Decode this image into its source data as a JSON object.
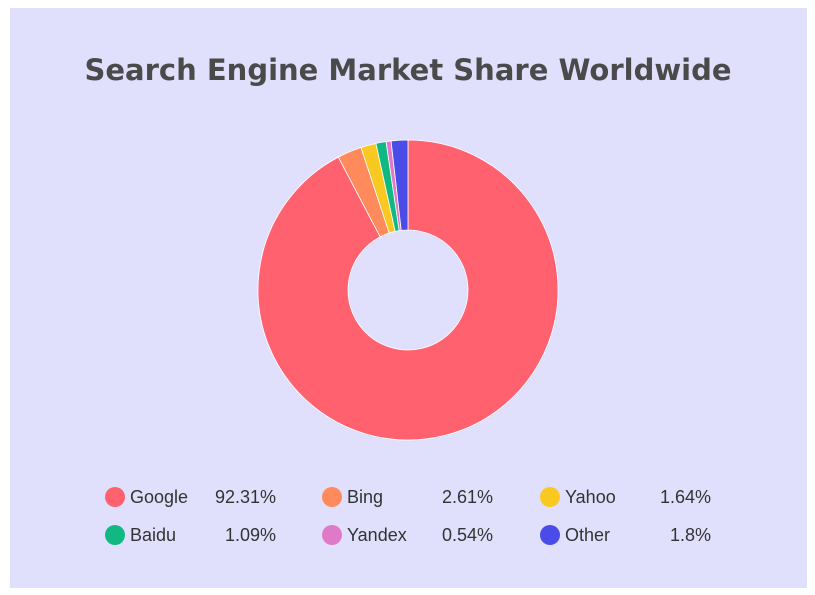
{
  "chart_data": {
    "type": "donut",
    "title": "Search Engine Market Share Worldwide",
    "categories": [
      "Google",
      "Bing",
      "Yahoo",
      "Baidu",
      "Yandex",
      "Other"
    ],
    "values": [
      92.31,
      2.61,
      1.64,
      1.09,
      0.54,
      1.8
    ],
    "value_labels": [
      "92.31%",
      "2.61%",
      "1.64%",
      "1.09%",
      "0.54%",
      "1.8%"
    ],
    "colors": [
      "#ff616f",
      "#ff8a5b",
      "#f9c922",
      "#10b981",
      "#e07ac8",
      "#4a4ce8"
    ]
  }
}
